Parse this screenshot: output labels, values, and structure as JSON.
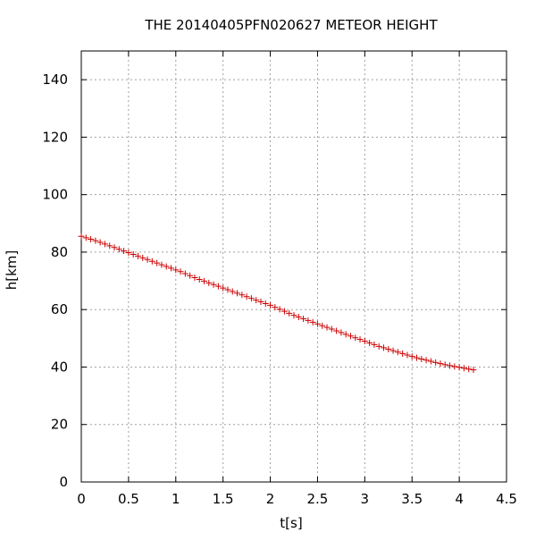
{
  "chart_data": {
    "type": "scatter",
    "title": "THE 20140405PFN020627 METEOR HEIGHT",
    "xlabel": "t[s]",
    "ylabel": "h[km]",
    "xlim": [
      0,
      4.5
    ],
    "ylim": [
      0,
      150
    ],
    "x_ticks": [
      0,
      0.5,
      1,
      1.5,
      2,
      2.5,
      3,
      3.5,
      4,
      4.5
    ],
    "x_tick_labels": [
      "0",
      "0.5",
      "1",
      "1.5",
      "2",
      "2.5",
      "3",
      "3.5",
      "4",
      "4.5"
    ],
    "y_ticks": [
      0,
      20,
      40,
      60,
      80,
      100,
      120,
      140
    ],
    "y_tick_labels": [
      "0",
      "20",
      "40",
      "60",
      "80",
      "100",
      "120",
      "140"
    ],
    "grid": true,
    "marker": "plus",
    "colors": {
      "series": "#cc0000",
      "grid": "#a0a0a0",
      "axes": "#000000"
    },
    "series": [
      {
        "x": [
          0.0,
          0.05,
          0.1,
          0.15,
          0.2,
          0.25,
          0.3,
          0.35,
          0.4,
          0.45,
          0.5,
          0.55,
          0.6,
          0.65,
          0.7,
          0.75,
          0.8,
          0.85,
          0.9,
          0.95,
          1.0,
          1.05,
          1.1,
          1.15,
          1.2,
          1.25,
          1.3,
          1.35,
          1.4,
          1.45,
          1.5,
          1.55,
          1.6,
          1.65,
          1.7,
          1.75,
          1.8,
          1.85,
          1.9,
          1.95,
          2.0,
          2.05,
          2.1,
          2.15,
          2.2,
          2.25,
          2.3,
          2.35,
          2.4,
          2.45,
          2.5,
          2.55,
          2.6,
          2.65,
          2.7,
          2.75,
          2.8,
          2.85,
          2.9,
          2.95,
          3.0,
          3.05,
          3.1,
          3.15,
          3.2,
          3.25,
          3.3,
          3.35,
          3.4,
          3.45,
          3.5,
          3.55,
          3.6,
          3.65,
          3.7,
          3.75,
          3.8,
          3.85,
          3.9,
          3.95,
          4.0,
          4.05,
          4.1,
          4.15
        ],
        "y": [
          85.5,
          85.0,
          84.5,
          84.0,
          83.4,
          82.8,
          82.2,
          81.6,
          81.0,
          80.4,
          79.8,
          79.2,
          78.6,
          78.0,
          77.4,
          76.8,
          76.2,
          75.6,
          75.0,
          74.4,
          73.8,
          73.2,
          72.5,
          71.8,
          71.1,
          70.5,
          69.9,
          69.3,
          68.7,
          68.1,
          67.5,
          66.9,
          66.3,
          65.7,
          65.1,
          64.5,
          63.9,
          63.3,
          62.7,
          62.1,
          61.5,
          60.8,
          60.1,
          59.4,
          58.7,
          58.0,
          57.4,
          56.8,
          56.2,
          55.6,
          55.0,
          54.4,
          53.8,
          53.2,
          52.6,
          52.0,
          51.4,
          50.8,
          50.2,
          49.6,
          49.0,
          48.4,
          47.8,
          47.2,
          46.7,
          46.2,
          45.7,
          45.2,
          44.7,
          44.2,
          43.7,
          43.2,
          42.8,
          42.4,
          42.0,
          41.6,
          41.2,
          40.8,
          40.5,
          40.2,
          39.9,
          39.6,
          39.3,
          39.0
        ]
      }
    ]
  }
}
